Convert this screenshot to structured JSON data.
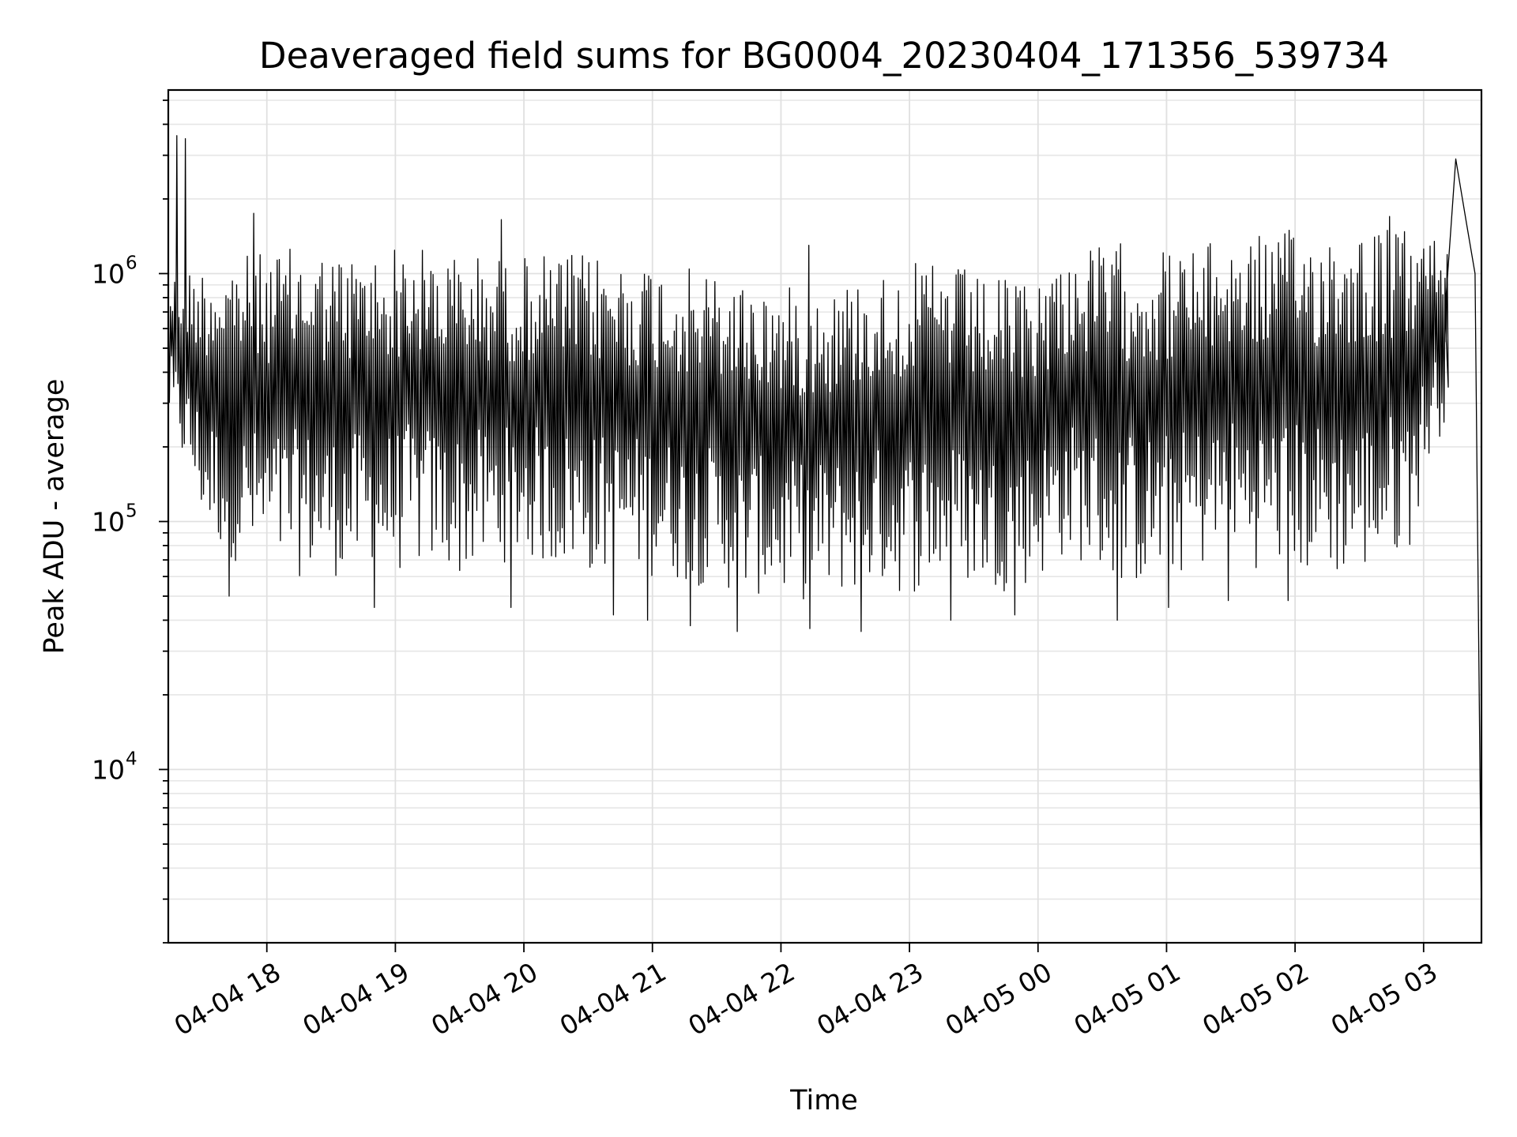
{
  "chart_data": {
    "type": "line",
    "title": "Deaveraged field sums for BG0004_20230404_171356_539734",
    "xlabel": "Time",
    "ylabel": "Peak ADU - average",
    "yscale": "log",
    "ylim": [
      2000,
      5500000
    ],
    "xlim": [
      "2023-04-04 17:14",
      "2023-04-05 03:27"
    ],
    "grid": true,
    "x_ticks": [
      {
        "value": "2023-04-04 18:00",
        "label": "04-04 18"
      },
      {
        "value": "2023-04-04 19:00",
        "label": "04-04 19"
      },
      {
        "value": "2023-04-04 20:00",
        "label": "04-04 20"
      },
      {
        "value": "2023-04-04 21:00",
        "label": "04-04 21"
      },
      {
        "value": "2023-04-04 22:00",
        "label": "04-04 22"
      },
      {
        "value": "2023-04-04 23:00",
        "label": "04-04 23"
      },
      {
        "value": "2023-04-05 00:00",
        "label": "04-05 00"
      },
      {
        "value": "2023-04-05 01:00",
        "label": "04-05 01"
      },
      {
        "value": "2023-04-05 02:00",
        "label": "04-05 02"
      },
      {
        "value": "2023-04-05 03:00",
        "label": "04-05 03"
      }
    ],
    "y_ticks": [
      {
        "value": 10000,
        "base": "10",
        "exp": "4"
      },
      {
        "value": 100000,
        "base": "10",
        "exp": "5"
      },
      {
        "value": 1000000,
        "base": "10",
        "exp": "6"
      }
    ],
    "series": [
      {
        "color": "#000000",
        "x": [
          "2023-04-04 17:14",
          "2023-04-04 17:16",
          "2023-04-04 17:18",
          "2023-04-04 17:20",
          "2023-04-04 17:22",
          "2023-04-04 17:25",
          "2023-04-04 17:28",
          "2023-04-04 17:32",
          "2023-04-04 17:40",
          "2023-04-04 17:50",
          "2023-04-04 18:00",
          "2023-04-04 18:10",
          "2023-04-04 18:20",
          "2023-04-04 18:30",
          "2023-04-04 18:40",
          "2023-04-04 18:50",
          "2023-04-04 19:00",
          "2023-04-04 19:10",
          "2023-04-04 19:20",
          "2023-04-04 19:30",
          "2023-04-04 19:40",
          "2023-04-04 19:50",
          "2023-04-04 20:00",
          "2023-04-04 20:10",
          "2023-04-04 20:20",
          "2023-04-04 20:30",
          "2023-04-04 20:40",
          "2023-04-04 20:50",
          "2023-04-04 21:00",
          "2023-04-04 21:10",
          "2023-04-04 21:20",
          "2023-04-04 21:30",
          "2023-04-04 21:40",
          "2023-04-04 21:50",
          "2023-04-04 22:00",
          "2023-04-04 22:10",
          "2023-04-04 22:20",
          "2023-04-04 22:30",
          "2023-04-04 22:40",
          "2023-04-04 22:50",
          "2023-04-04 23:00",
          "2023-04-04 23:10",
          "2023-04-04 23:20",
          "2023-04-04 23:30",
          "2023-04-04 23:40",
          "2023-04-04 23:50",
          "2023-04-05 00:00",
          "2023-04-05 00:10",
          "2023-04-05 00:20",
          "2023-04-05 00:30",
          "2023-04-05 00:40",
          "2023-04-05 00:50",
          "2023-04-05 01:00",
          "2023-04-05 01:10",
          "2023-04-05 01:20",
          "2023-04-05 01:30",
          "2023-04-05 01:40",
          "2023-04-05 01:50",
          "2023-04-05 02:00",
          "2023-04-05 02:10",
          "2023-04-05 02:20",
          "2023-04-05 02:30",
          "2023-04-05 02:40",
          "2023-04-05 02:50",
          "2023-04-05 03:00",
          "2023-04-05 03:10",
          "2023-04-05 03:15",
          "2023-04-05 03:20",
          "2023-04-05 03:24",
          "2023-04-05 03:27"
        ],
        "y": [
          1500000,
          3600000,
          600000,
          2000000,
          500000,
          1000000,
          500000,
          400000,
          200000,
          150000,
          110000,
          100000,
          120000,
          110000,
          100000,
          100000,
          110000,
          150000,
          150000,
          150000,
          150000,
          140000,
          130000,
          150000,
          150000,
          160000,
          150000,
          170000,
          150000,
          130000,
          130000,
          120000,
          110000,
          100000,
          90000,
          100000,
          100000,
          90000,
          100000,
          100000,
          100000,
          90000,
          90000,
          110000,
          110000,
          110000,
          130000,
          150000,
          130000,
          200000,
          300000,
          250000,
          300000,
          250000,
          200000,
          250000,
          400000,
          250000,
          250000,
          300000,
          300000,
          350000,
          400000,
          450000,
          600000,
          700000,
          2900000,
          1600000,
          1000000,
          2500
        ]
      }
    ],
    "envelope": {
      "upper": [
        [
          0,
          1000000
        ],
        [
          8,
          1100000
        ],
        [
          14,
          1200000
        ],
        [
          20,
          1200000
        ],
        [
          26,
          1250000
        ],
        [
          32,
          1300000
        ],
        [
          40,
          1200000
        ],
        [
          46,
          1200000
        ],
        [
          52,
          1300000
        ],
        [
          56,
          1300000
        ],
        [
          62,
          1250000
        ],
        [
          68,
          1200000
        ],
        [
          74,
          1200000
        ],
        [
          80,
          1150000
        ],
        [
          84,
          1200000
        ],
        [
          88,
          1200000
        ],
        [
          94,
          1200000
        ],
        [
          100,
          1200000
        ],
        [
          106,
          1150000
        ],
        [
          110,
          1150000
        ],
        [
          116,
          1100000
        ],
        [
          122,
          1050000
        ],
        [
          128,
          1000000
        ],
        [
          134,
          950000
        ],
        [
          140,
          900000
        ],
        [
          146,
          880000
        ],
        [
          150,
          880000
        ],
        [
          156,
          900000
        ],
        [
          160,
          950000
        ],
        [
          166,
          1000000
        ],
        [
          172,
          1100000
        ],
        [
          178,
          1100000
        ],
        [
          184,
          1100000
        ],
        [
          190,
          950000
        ],
        [
          196,
          950000
        ],
        [
          200,
          950000
        ],
        [
          204,
          1000000
        ],
        [
          208,
          1150000
        ],
        [
          212,
          1250000
        ],
        [
          218,
          1300000
        ],
        [
          224,
          1350000
        ],
        [
          230,
          1300000
        ],
        [
          236,
          1250000
        ],
        [
          242,
          1300000
        ],
        [
          248,
          1400000
        ],
        [
          254,
          1450000
        ],
        [
          260,
          1500000
        ],
        [
          266,
          1500000
        ],
        [
          272,
          1550000
        ],
        [
          278,
          1600000
        ],
        [
          284,
          1550000
        ],
        [
          290,
          1500000
        ],
        [
          294,
          1450000
        ],
        [
          298,
          1400000
        ]
      ],
      "lower": [
        [
          0,
          250000
        ],
        [
          8,
          90000
        ],
        [
          14,
          70000
        ],
        [
          20,
          65000
        ],
        [
          26,
          60000
        ],
        [
          32,
          60000
        ],
        [
          40,
          60000
        ],
        [
          46,
          60000
        ],
        [
          52,
          60000
        ],
        [
          56,
          65000
        ],
        [
          62,
          65000
        ],
        [
          68,
          60000
        ],
        [
          74,
          65000
        ],
        [
          80,
          70000
        ],
        [
          84,
          70000
        ],
        [
          88,
          65000
        ],
        [
          94,
          65000
        ],
        [
          100,
          60000
        ],
        [
          106,
          60000
        ],
        [
          110,
          60000
        ],
        [
          116,
          60000
        ],
        [
          122,
          55000
        ],
        [
          128,
          55000
        ],
        [
          134,
          50000
        ],
        [
          140,
          50000
        ],
        [
          146,
          48000
        ],
        [
          150,
          48000
        ],
        [
          156,
          50000
        ],
        [
          160,
          52000
        ],
        [
          166,
          55000
        ],
        [
          172,
          50000
        ],
        [
          178,
          55000
        ],
        [
          184,
          55000
        ],
        [
          190,
          55000
        ],
        [
          196,
          52000
        ],
        [
          200,
          55000
        ],
        [
          204,
          60000
        ],
        [
          208,
          70000
        ],
        [
          212,
          70000
        ],
        [
          218,
          60000
        ],
        [
          224,
          55000
        ],
        [
          230,
          55000
        ],
        [
          236,
          60000
        ],
        [
          242,
          65000
        ],
        [
          248,
          70000
        ],
        [
          254,
          65000
        ],
        [
          260,
          65000
        ],
        [
          266,
          60000
        ],
        [
          272,
          60000
        ],
        [
          278,
          60000
        ],
        [
          284,
          65000
        ],
        [
          290,
          80000
        ],
        [
          294,
          150000
        ],
        [
          298,
          250000
        ]
      ],
      "min_spikes": [
        [
          14,
          50000
        ],
        [
          48,
          45000
        ],
        [
          80,
          45000
        ],
        [
          104,
          42000
        ],
        [
          112,
          40000
        ],
        [
          122,
          38000
        ],
        [
          133,
          36000
        ],
        [
          150,
          37000
        ],
        [
          162,
          36000
        ],
        [
          183,
          40000
        ],
        [
          198,
          42000
        ],
        [
          222,
          40000
        ],
        [
          234,
          45000
        ],
        [
          248,
          48000
        ],
        [
          262,
          48000
        ]
      ],
      "max_spikes": [
        [
          2,
          3600000
        ],
        [
          4,
          3500000
        ],
        [
          20,
          1750000
        ],
        [
          78,
          1650000
        ],
        [
          150,
          1300000
        ],
        [
          286,
          1700000
        ]
      ]
    }
  }
}
